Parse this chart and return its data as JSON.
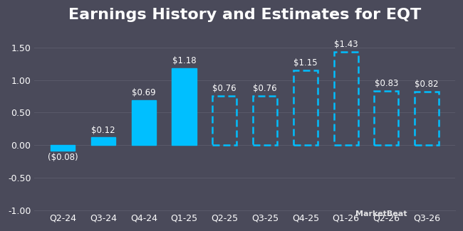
{
  "title": "Earnings History and Estimates for EQT",
  "categories": [
    "Q2-24",
    "Q3-24",
    "Q4-24",
    "Q1-25",
    "Q2-25",
    "Q3-25",
    "Q4-25",
    "Q1-26",
    "Q2-26",
    "Q3-26"
  ],
  "values": [
    -0.08,
    0.12,
    0.69,
    1.18,
    0.76,
    0.76,
    1.15,
    1.43,
    0.83,
    0.82
  ],
  "labels": [
    "($0.08)",
    "$0.12",
    "$0.69",
    "$1.18",
    "$0.76",
    "$0.76",
    "$1.15",
    "$1.43",
    "$0.83",
    "$0.82"
  ],
  "is_estimate": [
    false,
    false,
    false,
    false,
    true,
    true,
    true,
    true,
    true,
    true
  ],
  "bar_color": "#00bfff",
  "background_color": "#4a4a5a",
  "text_color": "#ffffff",
  "grid_color": "#5a5a6a",
  "ylim": [
    -1.0,
    1.75
  ],
  "yticks": [
    -1.0,
    -0.5,
    0.0,
    0.5,
    1.0,
    1.5
  ],
  "title_fontsize": 16,
  "label_fontsize": 8.5,
  "tick_fontsize": 9,
  "watermark": "MarketBeat"
}
